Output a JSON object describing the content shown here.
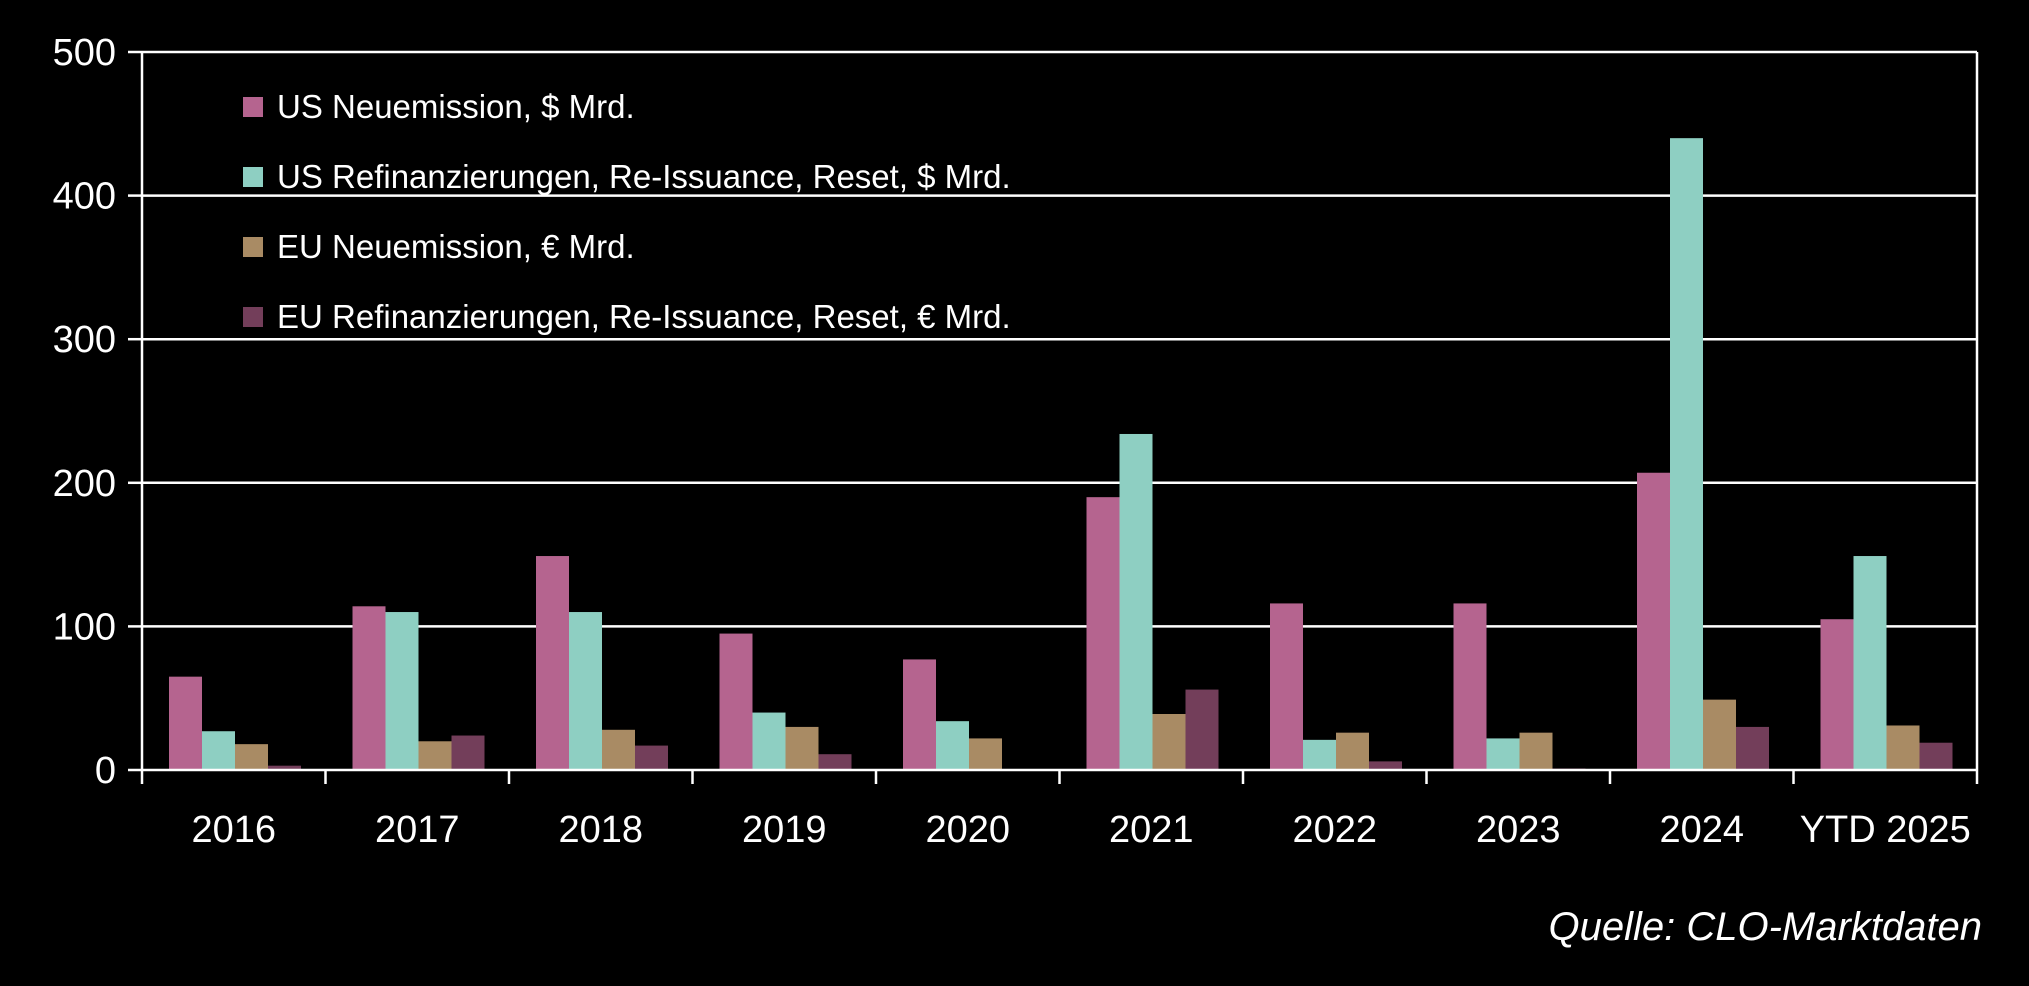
{
  "chart_data": {
    "type": "bar",
    "categories": [
      "2016",
      "2017",
      "2018",
      "2019",
      "2020",
      "2021",
      "2022",
      "2023",
      "2024",
      "YTD 2025"
    ],
    "series": [
      {
        "name": "US Neuemission, $ Mrd.",
        "color": "#b5648f",
        "values": [
          65,
          114,
          149,
          95,
          77,
          190,
          116,
          116,
          207,
          105
        ]
      },
      {
        "name": "US Refinanzierungen, Re-Issuance, Reset, $ Mrd.",
        "color": "#8ecfc2",
        "values": [
          27,
          110,
          110,
          40,
          34,
          234,
          21,
          22,
          440,
          149
        ]
      },
      {
        "name": "EU Neuemission, € Mrd.",
        "color": "#a98b64",
        "values": [
          18,
          20,
          28,
          30,
          22,
          39,
          26,
          26,
          49,
          31
        ]
      },
      {
        "name": "EU Refinanzierungen, Re-Issuance, Reset, € Mrd.",
        "color": "#733e5a",
        "values": [
          3,
          24,
          17,
          11,
          0,
          56,
          6,
          1,
          30,
          19
        ]
      }
    ],
    "y_ticks": [
      "0",
      "100",
      "200",
      "300",
      "400",
      "500"
    ],
    "ylim": [
      0,
      500
    ],
    "grid": true,
    "legend_position": "top-left",
    "title": "",
    "xlabel": "",
    "ylabel": ""
  },
  "source_note": "Quelle: CLO-Marktdaten"
}
